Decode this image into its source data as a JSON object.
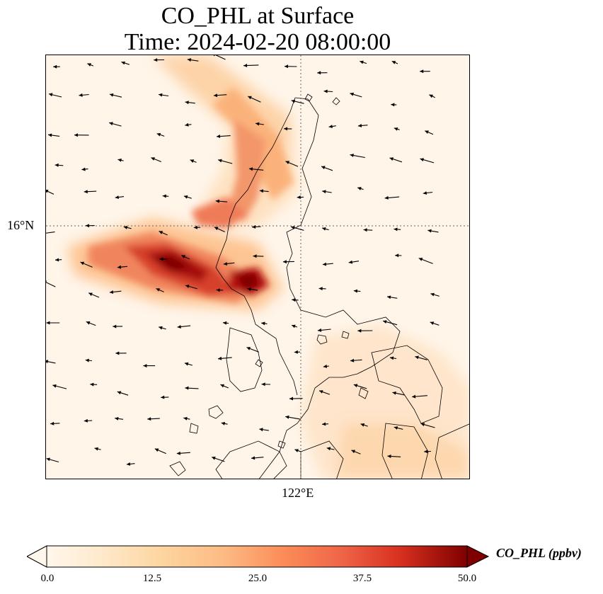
{
  "title": {
    "line1": "CO_PHL at Surface",
    "line2": "Time: 2024-02-20 08:00:00"
  },
  "axes": {
    "lat_tick": "16°N",
    "lon_tick": "122°E"
  },
  "colorbar": {
    "label": "CO_PHL (ppbv)",
    "ticks": [
      "0.0",
      "12.5",
      "25.0",
      "37.5",
      "50.0"
    ],
    "min": 0,
    "max": 50,
    "colormap": "OrRd",
    "extend": "both"
  },
  "colors": {
    "low": "#fff7ec",
    "mid": "#fc8d59",
    "high": "#7f0000",
    "coastline": "#000000",
    "gridline": "#666666"
  }
}
